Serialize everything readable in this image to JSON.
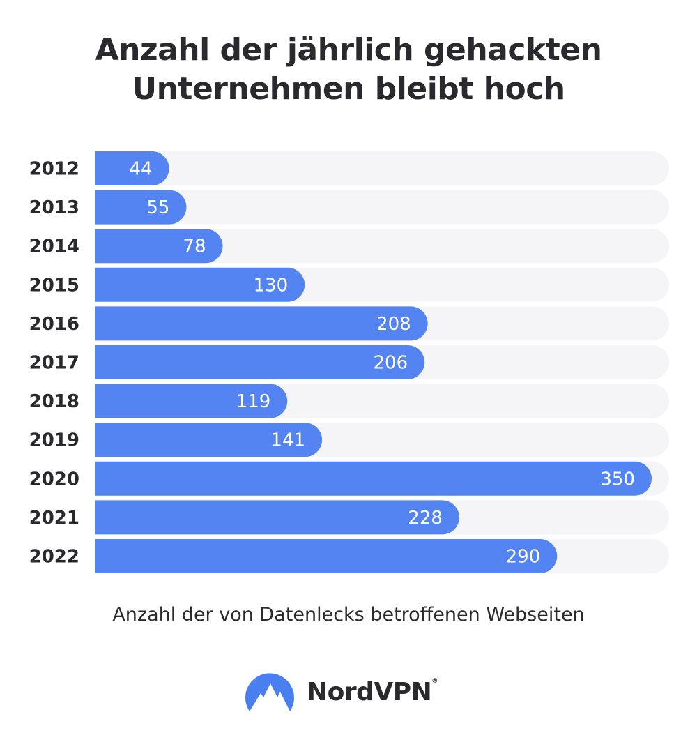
{
  "chart_data": {
    "type": "bar",
    "orientation": "horizontal",
    "title": "Anzahl der jährlich gehackten Unternehmen bleibt hoch",
    "xlabel": "Anzahl der von Datenlecks betroffenen Webseiten",
    "ylabel": "",
    "categories": [
      "2012",
      "2013",
      "2014",
      "2015",
      "2016",
      "2017",
      "2018",
      "2019",
      "2020",
      "2021",
      "2022"
    ],
    "values": [
      44,
      55,
      78,
      130,
      208,
      206,
      119,
      141,
      350,
      228,
      290
    ],
    "xlim": [
      0,
      360
    ],
    "grid": false,
    "data_labels": true,
    "colors": {
      "bar": "#5484F1",
      "track": "#F5F5F7",
      "label": "#FFFFFF"
    }
  },
  "brand": {
    "name": "NordVPN",
    "registered": "®",
    "icon": "nordvpn-mountain-logo"
  }
}
